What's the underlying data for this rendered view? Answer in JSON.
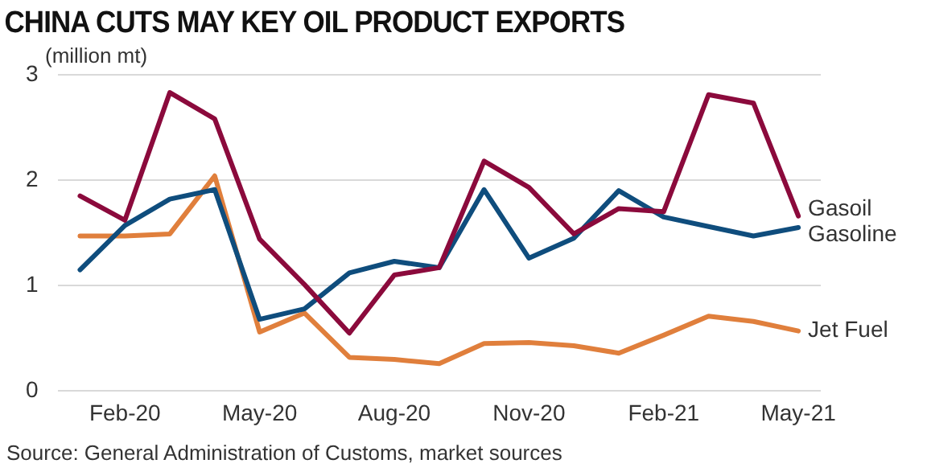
{
  "chart_data": {
    "type": "line",
    "title": "CHINA CUTS MAY KEY OIL PRODUCT EXPORTS",
    "ylabel": "(million mt)",
    "categories": [
      null,
      "Feb-20",
      null,
      null,
      "May-20",
      null,
      null,
      "Aug-20",
      null,
      null,
      "Nov-20",
      null,
      null,
      "Feb-21",
      null,
      null,
      "May-21"
    ],
    "series": [
      {
        "name": "Gasoil",
        "color": "#8b0a3c",
        "values": [
          1.85,
          1.62,
          2.83,
          2.58,
          1.44,
          1.01,
          0.55,
          1.1,
          1.17,
          2.18,
          1.93,
          1.49,
          1.73,
          1.7,
          2.81,
          2.73,
          1.66
        ]
      },
      {
        "name": "Gasoline",
        "color": "#0f4d7d",
        "values": [
          1.15,
          1.57,
          1.82,
          1.91,
          0.68,
          0.78,
          1.12,
          1.23,
          1.17,
          1.91,
          1.26,
          1.45,
          1.9,
          1.65,
          1.56,
          1.47,
          1.55
        ]
      },
      {
        "name": "Jet Fuel",
        "color": "#e07f3c",
        "values": [
          1.47,
          1.47,
          1.49,
          2.04,
          0.56,
          0.74,
          0.32,
          0.3,
          0.26,
          0.45,
          0.46,
          0.43,
          0.36,
          0.53,
          0.71,
          0.66,
          0.57
        ]
      }
    ],
    "ylim": [
      0,
      3
    ],
    "yticks": [
      0,
      1,
      2,
      3
    ],
    "grid": "y",
    "legend": false,
    "marker": "none",
    "line_style": "solid",
    "annotations": [
      "Source: General Administration of Customs, market sources"
    ]
  }
}
